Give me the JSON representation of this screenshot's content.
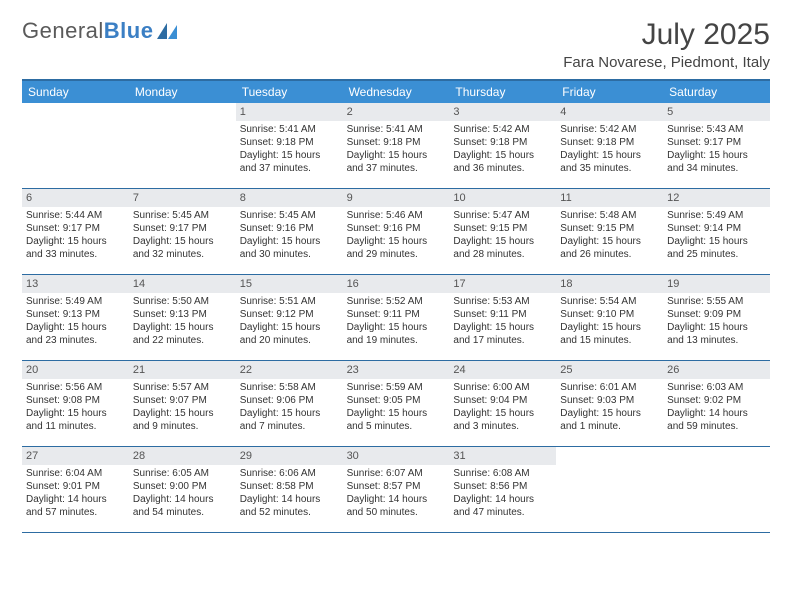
{
  "brand": {
    "part1": "General",
    "part2": "Blue"
  },
  "title": "July 2025",
  "location": "Fara Novarese, Piedmont, Italy",
  "colors": {
    "header_bg": "#3b8fd4",
    "header_text": "#ffffff",
    "border": "#2d6ca2",
    "daynum_bg": "#e8eaed",
    "logo_blue": "#3b7fc4"
  },
  "weekdays": [
    "Sunday",
    "Monday",
    "Tuesday",
    "Wednesday",
    "Thursday",
    "Friday",
    "Saturday"
  ],
  "blanks_before": 2,
  "blanks_after": 2,
  "days": [
    {
      "n": "1",
      "sunrise": "5:41 AM",
      "sunset": "9:18 PM",
      "daylight": "15 hours and 37 minutes."
    },
    {
      "n": "2",
      "sunrise": "5:41 AM",
      "sunset": "9:18 PM",
      "daylight": "15 hours and 37 minutes."
    },
    {
      "n": "3",
      "sunrise": "5:42 AM",
      "sunset": "9:18 PM",
      "daylight": "15 hours and 36 minutes."
    },
    {
      "n": "4",
      "sunrise": "5:42 AM",
      "sunset": "9:18 PM",
      "daylight": "15 hours and 35 minutes."
    },
    {
      "n": "5",
      "sunrise": "5:43 AM",
      "sunset": "9:17 PM",
      "daylight": "15 hours and 34 minutes."
    },
    {
      "n": "6",
      "sunrise": "5:44 AM",
      "sunset": "9:17 PM",
      "daylight": "15 hours and 33 minutes."
    },
    {
      "n": "7",
      "sunrise": "5:45 AM",
      "sunset": "9:17 PM",
      "daylight": "15 hours and 32 minutes."
    },
    {
      "n": "8",
      "sunrise": "5:45 AM",
      "sunset": "9:16 PM",
      "daylight": "15 hours and 30 minutes."
    },
    {
      "n": "9",
      "sunrise": "5:46 AM",
      "sunset": "9:16 PM",
      "daylight": "15 hours and 29 minutes."
    },
    {
      "n": "10",
      "sunrise": "5:47 AM",
      "sunset": "9:15 PM",
      "daylight": "15 hours and 28 minutes."
    },
    {
      "n": "11",
      "sunrise": "5:48 AM",
      "sunset": "9:15 PM",
      "daylight": "15 hours and 26 minutes."
    },
    {
      "n": "12",
      "sunrise": "5:49 AM",
      "sunset": "9:14 PM",
      "daylight": "15 hours and 25 minutes."
    },
    {
      "n": "13",
      "sunrise": "5:49 AM",
      "sunset": "9:13 PM",
      "daylight": "15 hours and 23 minutes."
    },
    {
      "n": "14",
      "sunrise": "5:50 AM",
      "sunset": "9:13 PM",
      "daylight": "15 hours and 22 minutes."
    },
    {
      "n": "15",
      "sunrise": "5:51 AM",
      "sunset": "9:12 PM",
      "daylight": "15 hours and 20 minutes."
    },
    {
      "n": "16",
      "sunrise": "5:52 AM",
      "sunset": "9:11 PM",
      "daylight": "15 hours and 19 minutes."
    },
    {
      "n": "17",
      "sunrise": "5:53 AM",
      "sunset": "9:11 PM",
      "daylight": "15 hours and 17 minutes."
    },
    {
      "n": "18",
      "sunrise": "5:54 AM",
      "sunset": "9:10 PM",
      "daylight": "15 hours and 15 minutes."
    },
    {
      "n": "19",
      "sunrise": "5:55 AM",
      "sunset": "9:09 PM",
      "daylight": "15 hours and 13 minutes."
    },
    {
      "n": "20",
      "sunrise": "5:56 AM",
      "sunset": "9:08 PM",
      "daylight": "15 hours and 11 minutes."
    },
    {
      "n": "21",
      "sunrise": "5:57 AM",
      "sunset": "9:07 PM",
      "daylight": "15 hours and 9 minutes."
    },
    {
      "n": "22",
      "sunrise": "5:58 AM",
      "sunset": "9:06 PM",
      "daylight": "15 hours and 7 minutes."
    },
    {
      "n": "23",
      "sunrise": "5:59 AM",
      "sunset": "9:05 PM",
      "daylight": "15 hours and 5 minutes."
    },
    {
      "n": "24",
      "sunrise": "6:00 AM",
      "sunset": "9:04 PM",
      "daylight": "15 hours and 3 minutes."
    },
    {
      "n": "25",
      "sunrise": "6:01 AM",
      "sunset": "9:03 PM",
      "daylight": "15 hours and 1 minute."
    },
    {
      "n": "26",
      "sunrise": "6:03 AM",
      "sunset": "9:02 PM",
      "daylight": "14 hours and 59 minutes."
    },
    {
      "n": "27",
      "sunrise": "6:04 AM",
      "sunset": "9:01 PM",
      "daylight": "14 hours and 57 minutes."
    },
    {
      "n": "28",
      "sunrise": "6:05 AM",
      "sunset": "9:00 PM",
      "daylight": "14 hours and 54 minutes."
    },
    {
      "n": "29",
      "sunrise": "6:06 AM",
      "sunset": "8:58 PM",
      "daylight": "14 hours and 52 minutes."
    },
    {
      "n": "30",
      "sunrise": "6:07 AM",
      "sunset": "8:57 PM",
      "daylight": "14 hours and 50 minutes."
    },
    {
      "n": "31",
      "sunrise": "6:08 AM",
      "sunset": "8:56 PM",
      "daylight": "14 hours and 47 minutes."
    }
  ],
  "labels": {
    "sunrise": "Sunrise: ",
    "sunset": "Sunset: ",
    "daylight": "Daylight: "
  }
}
